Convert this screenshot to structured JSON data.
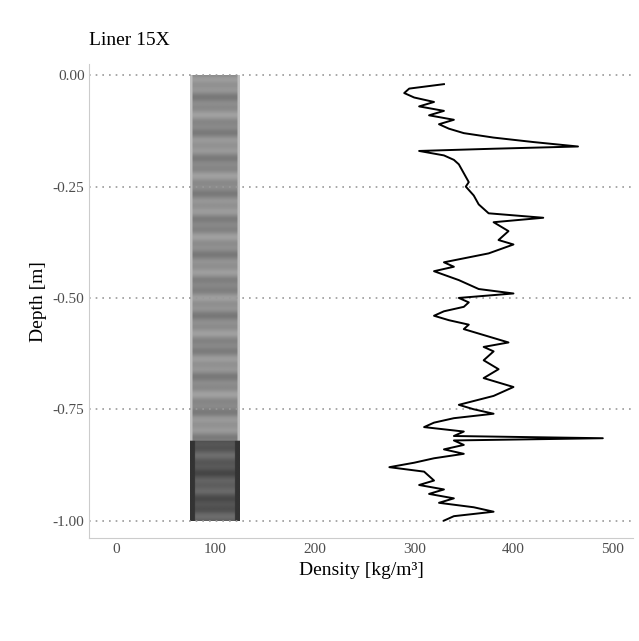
{
  "chart_data": {
    "type": "line",
    "title": "Liner 15X",
    "x_label": "Density [kg/m³]",
    "y_label": "Depth [m]",
    "x": [
      330,
      295,
      290,
      300,
      320,
      305,
      330,
      315,
      340,
      325,
      335,
      350,
      380,
      420,
      465,
      380,
      305,
      330,
      340,
      345,
      350,
      355,
      352,
      360,
      365,
      375,
      430,
      380,
      395,
      385,
      400,
      375,
      330,
      340,
      320,
      345,
      365,
      400,
      345,
      355,
      350,
      330,
      320,
      335,
      355,
      350,
      365,
      395,
      370,
      380,
      370,
      385,
      370,
      400,
      380,
      345,
      360,
      380,
      340,
      320,
      310,
      350,
      340,
      490,
      340,
      350,
      330,
      350,
      320,
      300,
      275,
      310,
      315,
      320,
      305,
      330,
      315,
      340,
      325,
      360,
      380,
      340,
      330
    ],
    "y": [
      -0.02,
      -0.03,
      -0.04,
      -0.05,
      -0.06,
      -0.07,
      -0.08,
      -0.09,
      -0.1,
      -0.11,
      -0.12,
      -0.13,
      -0.14,
      -0.15,
      -0.16,
      -0.165,
      -0.17,
      -0.18,
      -0.19,
      -0.2,
      -0.22,
      -0.24,
      -0.25,
      -0.27,
      -0.29,
      -0.31,
      -0.32,
      -0.33,
      -0.35,
      -0.37,
      -0.38,
      -0.4,
      -0.42,
      -0.43,
      -0.44,
      -0.46,
      -0.48,
      -0.49,
      -0.5,
      -0.51,
      -0.52,
      -0.53,
      -0.54,
      -0.55,
      -0.56,
      -0.57,
      -0.58,
      -0.6,
      -0.61,
      -0.62,
      -0.64,
      -0.66,
      -0.68,
      -0.7,
      -0.72,
      -0.74,
      -0.75,
      -0.76,
      -0.77,
      -0.78,
      -0.79,
      -0.8,
      -0.81,
      -0.815,
      -0.82,
      -0.83,
      -0.84,
      -0.85,
      -0.86,
      -0.87,
      -0.88,
      -0.89,
      -0.9,
      -0.91,
      -0.92,
      -0.93,
      -0.94,
      -0.95,
      -0.96,
      -0.97,
      -0.98,
      -0.99,
      -1.0
    ],
    "color": "#000000",
    "xlim": [
      -27,
      520
    ],
    "xticks": [
      0,
      100,
      200,
      300,
      400,
      500
    ],
    "ylim": [
      -1.04,
      0.025
    ],
    "yticks": [
      {
        "value": 0,
        "label": "0.00"
      },
      {
        "value": -0.25,
        "label": "-0.25"
      },
      {
        "value": -0.5,
        "label": "-0.50"
      },
      {
        "value": -0.75,
        "label": "-0.75"
      },
      {
        "value": -1,
        "label": "-1.00"
      }
    ],
    "grid": true
  }
}
